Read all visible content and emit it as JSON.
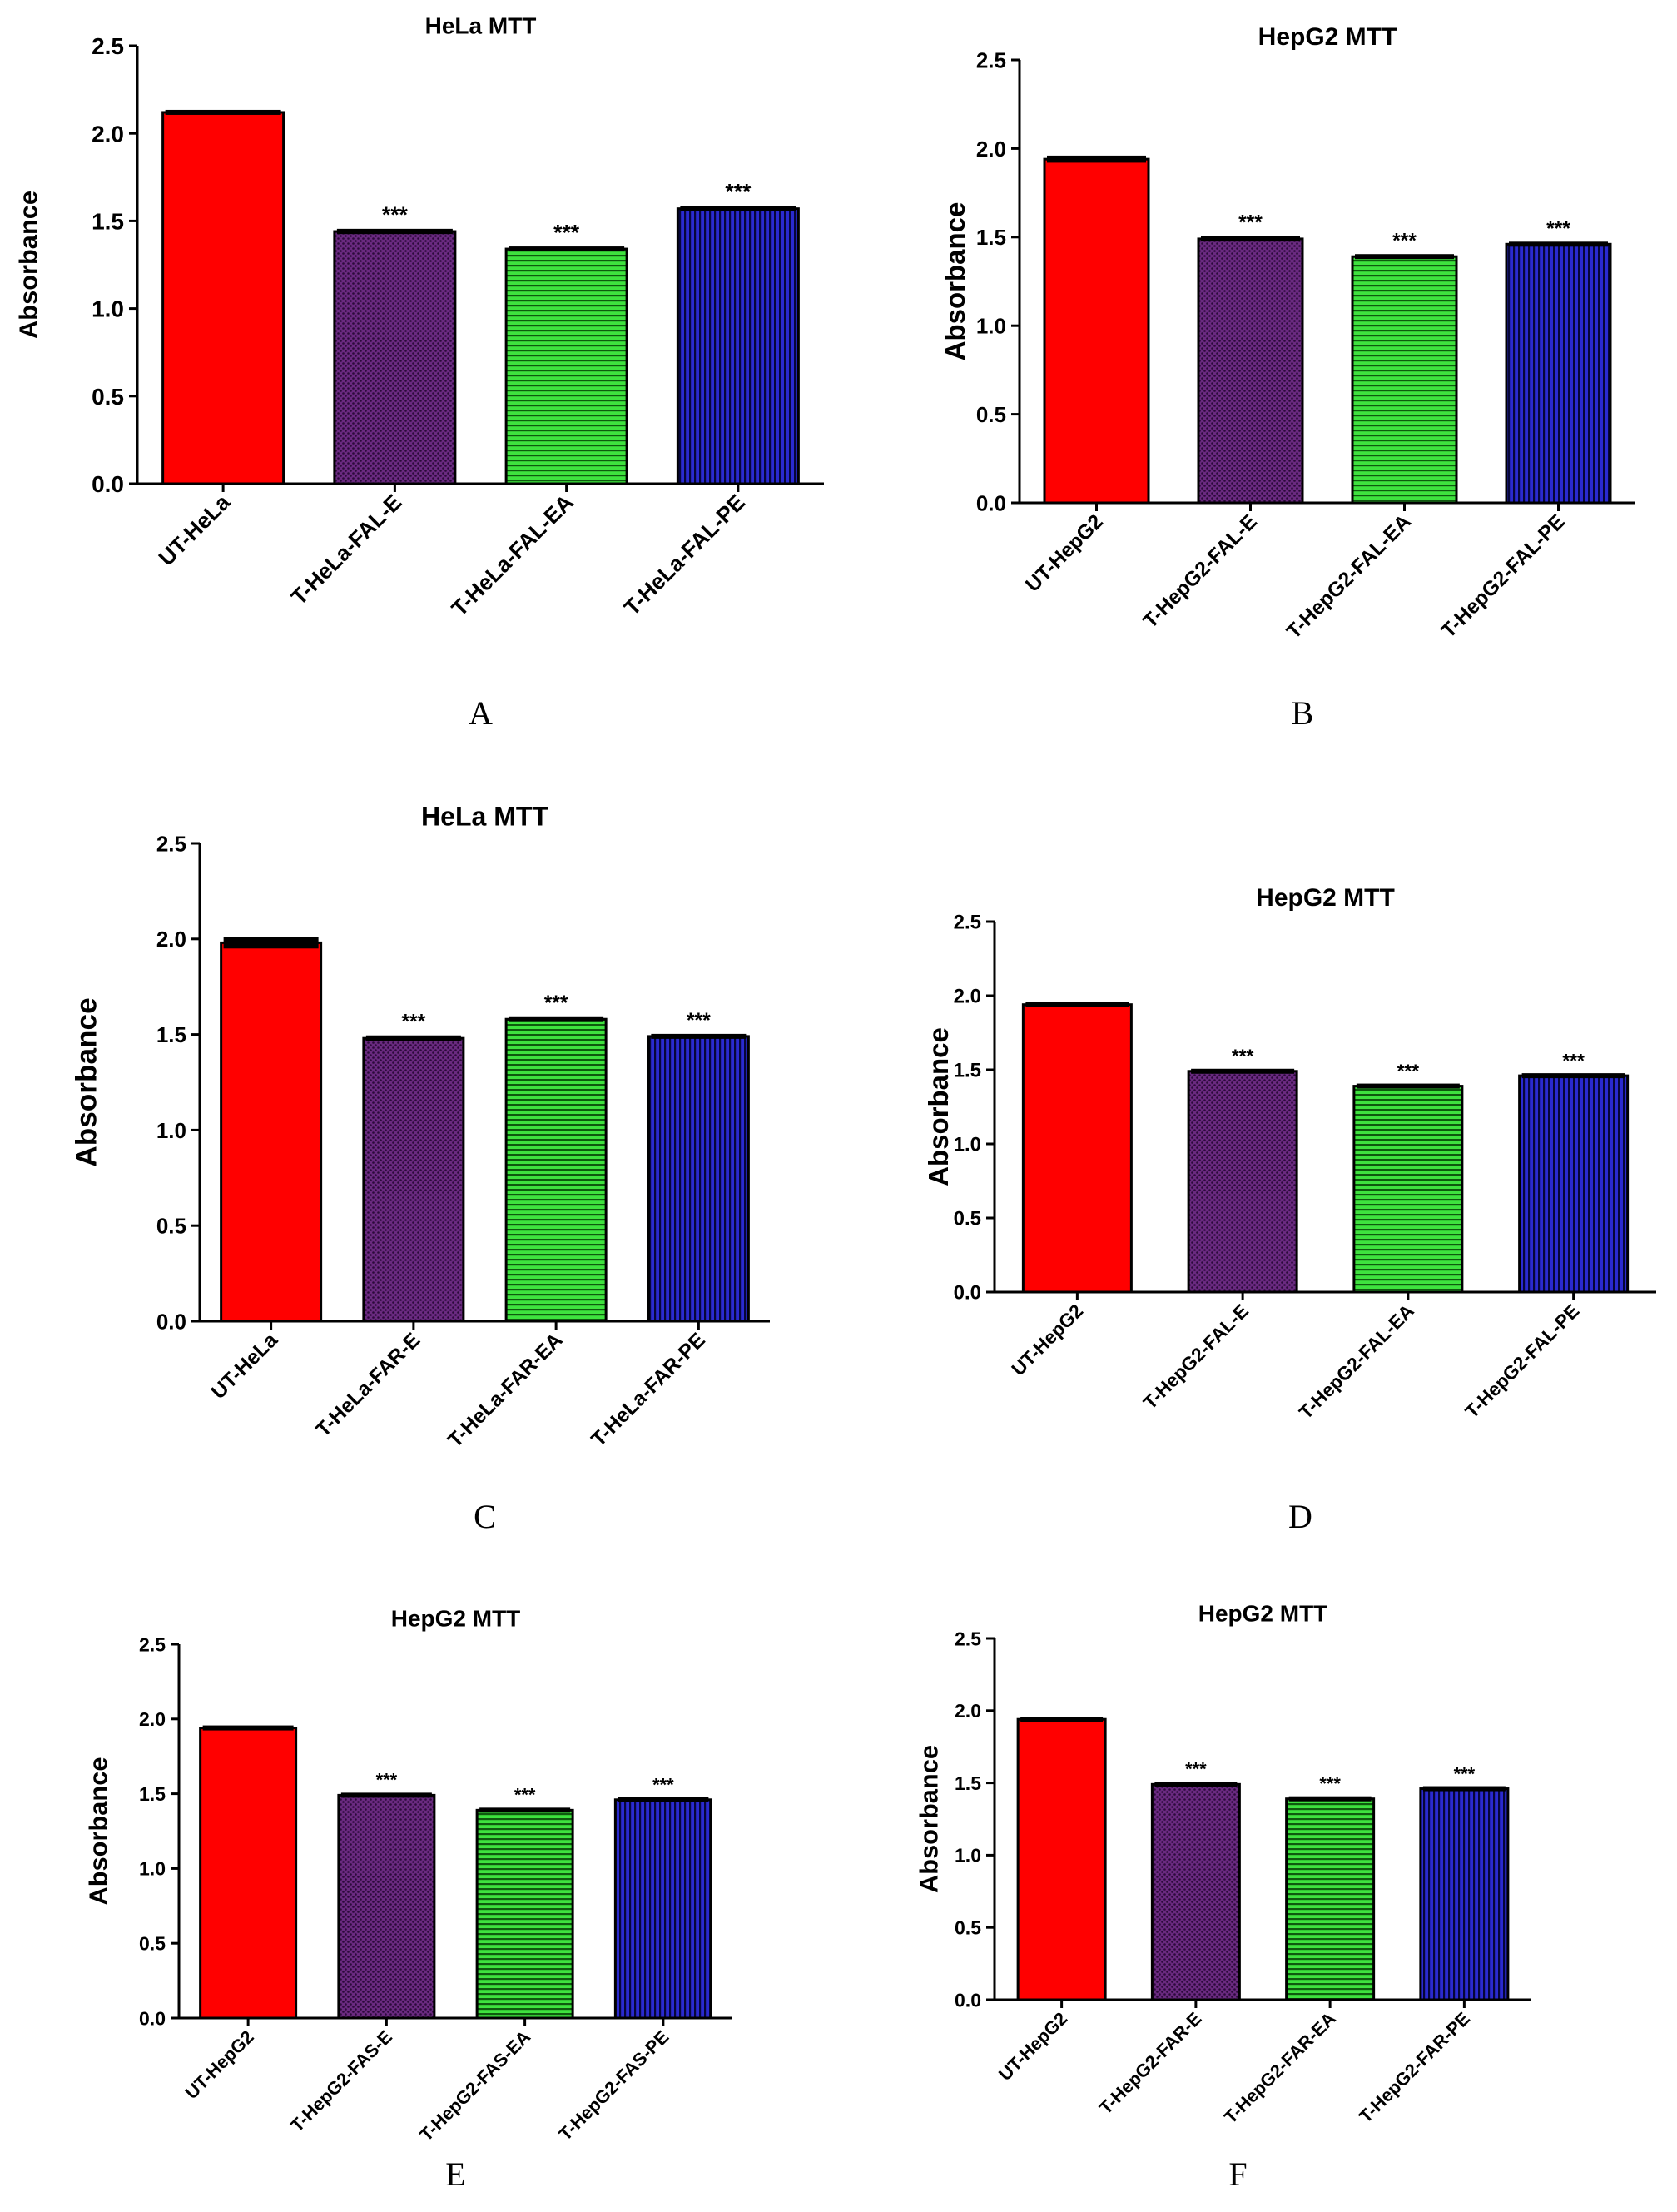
{
  "ylabel": "Absorbance",
  "colors": {
    "red": "#ff0000",
    "purple": "#5a1f6e",
    "green": "#22b822",
    "blue": "#141494",
    "axis": "#000000"
  },
  "significance": "***",
  "chart_data": [
    {
      "panel": "A",
      "type": "bar",
      "title": "HeLa MTT",
      "ylabel": "Absorbance",
      "ylim": [
        0,
        2.5
      ],
      "yticks": [
        "0.0",
        "0.5",
        "1.0",
        "1.5",
        "2.0",
        "2.5"
      ],
      "categories": [
        "UT-HeLa",
        "T-HeLa-FAL-E",
        "T-HeLa-FAL-EA",
        "T-HeLa-FAL-PE"
      ],
      "values": [
        2.12,
        1.44,
        1.34,
        1.57
      ],
      "errors": [
        0.01,
        0.015,
        0.012,
        0.015
      ],
      "significance": [
        "",
        "***",
        "***",
        "***"
      ]
    },
    {
      "panel": "B",
      "type": "bar",
      "title": "HepG2 MTT",
      "ylabel": "Absorbance",
      "ylim": [
        0,
        2.5
      ],
      "yticks": [
        "0.0",
        "0.5",
        "1.0",
        "1.5",
        "2.0",
        "2.5"
      ],
      "categories": [
        "UT-HepG2",
        "T-HepG2-FAL-E",
        "T-HepG2-FAL-EA",
        "T-HepG2-FAL-PE"
      ],
      "values": [
        1.94,
        1.49,
        1.39,
        1.46
      ],
      "errors": [
        0.02,
        0.015,
        0.012,
        0.012
      ],
      "significance": [
        "",
        "***",
        "***",
        "***"
      ]
    },
    {
      "panel": "C",
      "type": "bar",
      "title": "HeLa MTT",
      "ylabel": "Absorbance",
      "ylim": [
        0,
        2.5
      ],
      "yticks": [
        "0.0",
        "0.5",
        "1.0",
        "1.5",
        "2.0",
        "2.5"
      ],
      "categories": [
        "UT-HeLa",
        "T-HeLa-FAR-E",
        "T-HeLa-FAR-EA",
        "T-HeLa-FAR-PE"
      ],
      "values": [
        1.98,
        1.48,
        1.58,
        1.49
      ],
      "errors": [
        0.03,
        0.015,
        0.015,
        0.012
      ],
      "significance": [
        "",
        "***",
        "***",
        "***"
      ]
    },
    {
      "panel": "D",
      "type": "bar",
      "title": "HepG2 MTT",
      "ylabel": "Absorbance",
      "ylim": [
        0,
        2.5
      ],
      "yticks": [
        "0.0",
        "0.5",
        "1.0",
        "1.5",
        "2.0",
        "2.5"
      ],
      "categories": [
        "UT-HepG2",
        "T-HepG2-FAL-E",
        "T-HepG2-FAL-EA",
        "T-HepG2-FAL-PE"
      ],
      "values": [
        1.94,
        1.49,
        1.39,
        1.46
      ],
      "errors": [
        0.015,
        0.012,
        0.012,
        0.012
      ],
      "significance": [
        "",
        "***",
        "***",
        "***"
      ]
    },
    {
      "panel": "E",
      "type": "bar",
      "title": "HepG2 MTT",
      "ylabel": "Absorbance",
      "ylim": [
        0,
        2.5
      ],
      "yticks": [
        "0.0",
        "0.5",
        "1.0",
        "1.5",
        "2.0",
        "2.5"
      ],
      "categories": [
        "UT-HepG2",
        "T-HepG2-FAS-E",
        "T-HepG2-FAS-EA",
        "T-HepG2-FAS-PE"
      ],
      "values": [
        1.94,
        1.49,
        1.39,
        1.46
      ],
      "errors": [
        0.015,
        0.015,
        0.015,
        0.012
      ],
      "significance": [
        "",
        "***",
        "***",
        "***"
      ]
    },
    {
      "panel": "F",
      "type": "bar",
      "title": "HepG2 MTT",
      "ylabel": "Absorbance",
      "ylim": [
        0,
        2.5
      ],
      "yticks": [
        "0.0",
        "0.5",
        "1.0",
        "1.5",
        "2.0",
        "2.5"
      ],
      "categories": [
        "UT-HepG2",
        "T-HepG2-FAR-E",
        "T-HepG2-FAR-EA",
        "T-HepG2-FAR-PE"
      ],
      "values": [
        1.94,
        1.49,
        1.39,
        1.46
      ],
      "errors": [
        0.015,
        0.015,
        0.015,
        0.012
      ],
      "significance": [
        "",
        "***",
        "***",
        "***"
      ]
    }
  ]
}
